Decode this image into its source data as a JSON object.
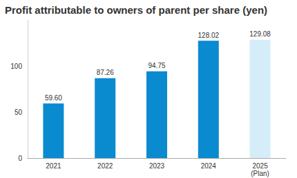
{
  "chart_data": {
    "type": "bar",
    "title": "Profit attributable to owners of parent per share (yen)",
    "categories": [
      "2021",
      "2022",
      "2023",
      "2024",
      "2025\n(Plan)"
    ],
    "values": [
      59.6,
      87.26,
      94.75,
      128.02,
      129.08
    ],
    "value_labels": [
      "59.60",
      "87.26",
      "94.75",
      "128.02",
      "129.08"
    ],
    "colors": [
      "#0a8bd0",
      "#0a8bd0",
      "#0a8bd0",
      "#0a8bd0",
      "#d4edf9"
    ],
    "ylim": [
      0,
      150
    ],
    "yticks": [
      0,
      50,
      100
    ],
    "grid": false,
    "data_labels": true
  }
}
